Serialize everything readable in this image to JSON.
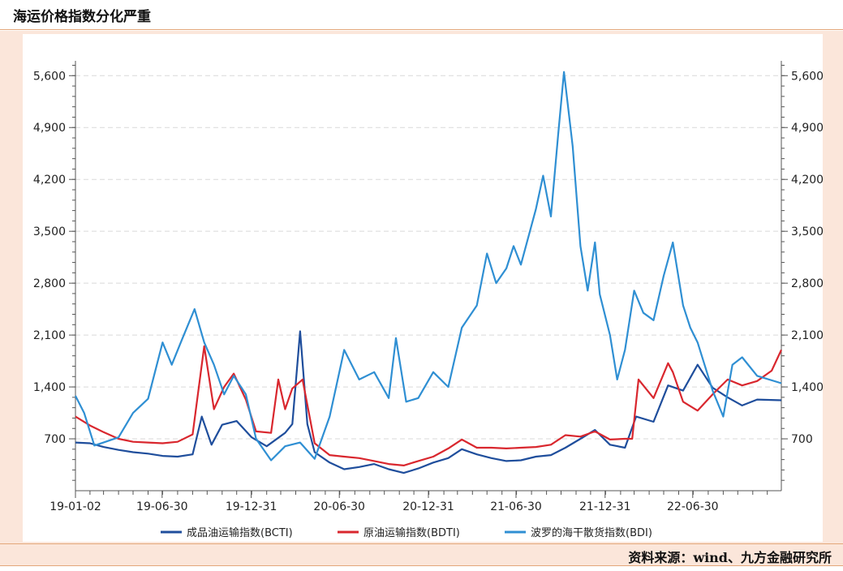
{
  "title": "海运价格指数分化严重",
  "source": "资料来源：wind、九方金融研究所",
  "chart_data": {
    "type": "line",
    "ylim": [
      0,
      5800
    ],
    "yticks": [
      700,
      1400,
      2100,
      2800,
      3500,
      4200,
      4900,
      5600
    ],
    "ytick_labels_left": [
      "700",
      "1,400",
      "2,100",
      "2,800",
      "3,500",
      "4,200",
      "4,900",
      "5,600"
    ],
    "ytick_labels_right": [
      "700",
      "1,400",
      "2,100",
      "2,800",
      "3,500",
      "4,200",
      "4,900",
      "5,600"
    ],
    "x_start": "2019-01-02",
    "x_end": "2022-12-30",
    "xtick_labels": [
      "19-01-02",
      "19-06-30",
      "19-12-31",
      "20-06-30",
      "20-12-31",
      "21-06-30",
      "21-12-31",
      "22-06-30"
    ],
    "xtick_dates": [
      "2019-01-02",
      "2019-06-30",
      "2019-12-31",
      "2020-06-30",
      "2020-12-31",
      "2021-06-30",
      "2021-12-31",
      "2022-06-30"
    ],
    "grid": "horizontal dashed",
    "legend_position": "bottom",
    "series": [
      {
        "name": "成品油运输指数(BCTI)",
        "color": "#1f4e9c",
        "points": [
          [
            "2019-01-02",
            650
          ],
          [
            "2019-02-01",
            640
          ],
          [
            "2019-03-01",
            590
          ],
          [
            "2019-04-01",
            550
          ],
          [
            "2019-05-01",
            520
          ],
          [
            "2019-06-01",
            500
          ],
          [
            "2019-07-01",
            470
          ],
          [
            "2019-08-01",
            460
          ],
          [
            "2019-09-01",
            490
          ],
          [
            "2019-09-20",
            1000
          ],
          [
            "2019-10-10",
            620
          ],
          [
            "2019-11-01",
            890
          ],
          [
            "2019-12-01",
            940
          ],
          [
            "2020-01-01",
            720
          ],
          [
            "2020-02-01",
            600
          ],
          [
            "2020-03-10",
            780
          ],
          [
            "2020-03-25",
            900
          ],
          [
            "2020-04-10",
            2150
          ],
          [
            "2020-04-25",
            900
          ],
          [
            "2020-05-10",
            520
          ],
          [
            "2020-06-10",
            380
          ],
          [
            "2020-07-10",
            290
          ],
          [
            "2020-08-10",
            320
          ],
          [
            "2020-09-10",
            360
          ],
          [
            "2020-10-10",
            290
          ],
          [
            "2020-11-10",
            240
          ],
          [
            "2020-12-10",
            300
          ],
          [
            "2021-01-10",
            380
          ],
          [
            "2021-02-10",
            440
          ],
          [
            "2021-03-10",
            560
          ],
          [
            "2021-04-10",
            490
          ],
          [
            "2021-05-10",
            440
          ],
          [
            "2021-06-10",
            400
          ],
          [
            "2021-07-10",
            410
          ],
          [
            "2021-08-10",
            460
          ],
          [
            "2021-09-10",
            480
          ],
          [
            "2021-10-10",
            580
          ],
          [
            "2021-11-10",
            700
          ],
          [
            "2021-12-10",
            820
          ],
          [
            "2022-01-10",
            620
          ],
          [
            "2022-02-10",
            580
          ],
          [
            "2022-03-05",
            1000
          ],
          [
            "2022-04-10",
            930
          ],
          [
            "2022-05-10",
            1420
          ],
          [
            "2022-06-10",
            1350
          ],
          [
            "2022-07-10",
            1700
          ],
          [
            "2022-08-10",
            1390
          ],
          [
            "2022-09-10",
            1260
          ],
          [
            "2022-10-10",
            1150
          ],
          [
            "2022-11-10",
            1230
          ],
          [
            "2022-12-30",
            1220
          ]
        ]
      },
      {
        "name": "原油运输指数(BDTI)",
        "color": "#d9272e",
        "points": [
          [
            "2019-01-02",
            1000
          ],
          [
            "2019-02-01",
            880
          ],
          [
            "2019-03-01",
            790
          ],
          [
            "2019-04-01",
            700
          ],
          [
            "2019-05-01",
            660
          ],
          [
            "2019-06-01",
            650
          ],
          [
            "2019-07-01",
            640
          ],
          [
            "2019-08-01",
            660
          ],
          [
            "2019-09-01",
            760
          ],
          [
            "2019-09-25",
            1950
          ],
          [
            "2019-10-15",
            1100
          ],
          [
            "2019-11-05",
            1400
          ],
          [
            "2019-11-25",
            1580
          ],
          [
            "2019-12-20",
            1230
          ],
          [
            "2020-01-10",
            800
          ],
          [
            "2020-02-10",
            780
          ],
          [
            "2020-02-25",
            1500
          ],
          [
            "2020-03-10",
            1100
          ],
          [
            "2020-03-25",
            1380
          ],
          [
            "2020-04-15",
            1500
          ],
          [
            "2020-05-10",
            640
          ],
          [
            "2020-06-10",
            480
          ],
          [
            "2020-07-10",
            460
          ],
          [
            "2020-08-10",
            440
          ],
          [
            "2020-09-10",
            400
          ],
          [
            "2020-10-10",
            360
          ],
          [
            "2020-11-10",
            340
          ],
          [
            "2020-12-10",
            400
          ],
          [
            "2021-01-10",
            460
          ],
          [
            "2021-02-10",
            570
          ],
          [
            "2021-03-10",
            690
          ],
          [
            "2021-04-10",
            580
          ],
          [
            "2021-05-10",
            580
          ],
          [
            "2021-06-10",
            570
          ],
          [
            "2021-07-10",
            580
          ],
          [
            "2021-08-10",
            590
          ],
          [
            "2021-09-10",
            620
          ],
          [
            "2021-10-10",
            750
          ],
          [
            "2021-11-10",
            730
          ],
          [
            "2021-12-10",
            800
          ],
          [
            "2022-01-10",
            690
          ],
          [
            "2022-02-10",
            700
          ],
          [
            "2022-02-25",
            700
          ],
          [
            "2022-03-10",
            1500
          ],
          [
            "2022-04-10",
            1250
          ],
          [
            "2022-05-10",
            1720
          ],
          [
            "2022-05-20",
            1600
          ],
          [
            "2022-06-10",
            1200
          ],
          [
            "2022-07-10",
            1080
          ],
          [
            "2022-08-10",
            1300
          ],
          [
            "2022-09-10",
            1500
          ],
          [
            "2022-10-10",
            1420
          ],
          [
            "2022-11-10",
            1480
          ],
          [
            "2022-12-10",
            1620
          ],
          [
            "2022-12-30",
            1900
          ]
        ]
      },
      {
        "name": "波罗的海干散货指数(BDI)",
        "color": "#2f8fd3",
        "points": [
          [
            "2019-01-02",
            1280
          ],
          [
            "2019-01-20",
            1050
          ],
          [
            "2019-02-10",
            610
          ],
          [
            "2019-03-01",
            650
          ],
          [
            "2019-04-01",
            720
          ],
          [
            "2019-05-01",
            1050
          ],
          [
            "2019-06-01",
            1240
          ],
          [
            "2019-07-01",
            2000
          ],
          [
            "2019-07-20",
            1700
          ],
          [
            "2019-08-10",
            2040
          ],
          [
            "2019-09-05",
            2450
          ],
          [
            "2019-09-25",
            2000
          ],
          [
            "2019-10-15",
            1700
          ],
          [
            "2019-11-05",
            1300
          ],
          [
            "2019-11-25",
            1550
          ],
          [
            "2019-12-20",
            1300
          ],
          [
            "2020-01-10",
            700
          ],
          [
            "2020-02-10",
            410
          ],
          [
            "2020-03-10",
            600
          ],
          [
            "2020-04-10",
            650
          ],
          [
            "2020-05-10",
            430
          ],
          [
            "2020-06-10",
            1000
          ],
          [
            "2020-07-10",
            1900
          ],
          [
            "2020-08-10",
            1500
          ],
          [
            "2020-09-10",
            1600
          ],
          [
            "2020-10-10",
            1250
          ],
          [
            "2020-10-25",
            2060
          ],
          [
            "2020-11-15",
            1200
          ],
          [
            "2020-12-10",
            1250
          ],
          [
            "2021-01-10",
            1600
          ],
          [
            "2021-02-10",
            1400
          ],
          [
            "2021-03-10",
            2200
          ],
          [
            "2021-04-10",
            2500
          ],
          [
            "2021-05-01",
            3200
          ],
          [
            "2021-05-20",
            2800
          ],
          [
            "2021-06-10",
            3000
          ],
          [
            "2021-06-25",
            3300
          ],
          [
            "2021-07-10",
            3050
          ],
          [
            "2021-08-10",
            3800
          ],
          [
            "2021-08-25",
            4250
          ],
          [
            "2021-09-10",
            3700
          ],
          [
            "2021-09-25",
            4800
          ],
          [
            "2021-10-07",
            5650
          ],
          [
            "2021-10-25",
            4650
          ],
          [
            "2021-11-10",
            3300
          ],
          [
            "2021-11-25",
            2700
          ],
          [
            "2021-12-10",
            3350
          ],
          [
            "2021-12-20",
            2650
          ],
          [
            "2022-01-10",
            2100
          ],
          [
            "2022-01-25",
            1500
          ],
          [
            "2022-02-10",
            1900
          ],
          [
            "2022-03-01",
            2700
          ],
          [
            "2022-03-20",
            2400
          ],
          [
            "2022-04-10",
            2300
          ],
          [
            "2022-05-01",
            2900
          ],
          [
            "2022-05-20",
            3350
          ],
          [
            "2022-06-10",
            2500
          ],
          [
            "2022-06-25",
            2200
          ],
          [
            "2022-07-10",
            2000
          ],
          [
            "2022-08-10",
            1350
          ],
          [
            "2022-09-01",
            1000
          ],
          [
            "2022-09-20",
            1700
          ],
          [
            "2022-10-10",
            1800
          ],
          [
            "2022-11-10",
            1550
          ],
          [
            "2022-12-30",
            1450
          ]
        ]
      }
    ]
  }
}
